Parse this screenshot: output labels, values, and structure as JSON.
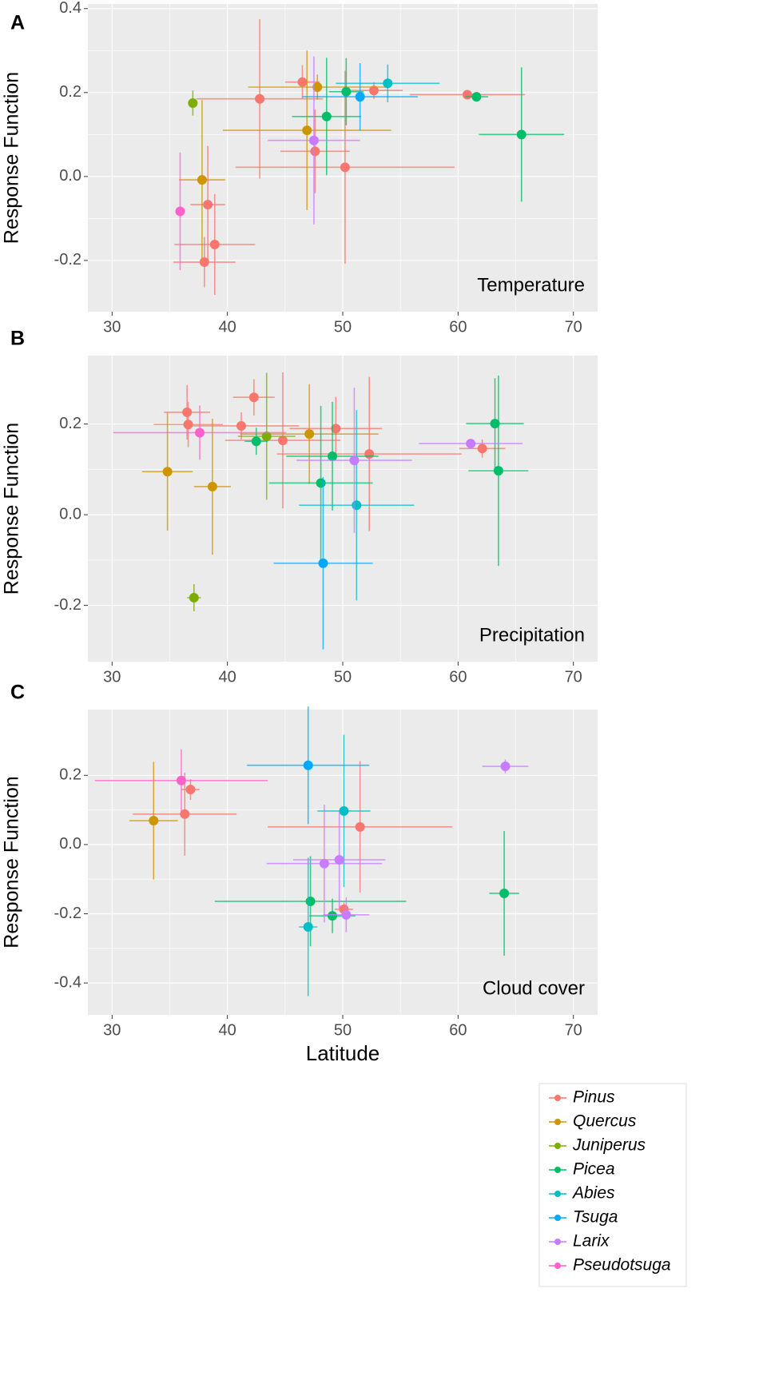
{
  "chart_data": [
    {
      "type": "scatter",
      "panel_label": "A",
      "annotation": "Temperature",
      "ylabel": "Response Function",
      "xlim": [
        27.9,
        72.1
      ],
      "xticks": [
        30,
        40,
        50,
        60,
        70
      ],
      "ylim": [
        -0.322,
        0.411
      ],
      "yticks": [
        {
          "value": 0.4,
          "label": "0.4"
        },
        {
          "value": 0.2,
          "label": "0.2"
        },
        {
          "value": 0,
          "label": "0.0"
        },
        {
          "value": -0.2,
          "label": "-0.2"
        }
      ],
      "grid": true,
      "series": [
        {
          "name": "Pinus",
          "color": "#F8766D",
          "x": [
            46.5,
            42.8,
            52.7,
            60.8,
            47.6,
            50.2,
            38.3,
            38.9,
            38.0
          ],
          "values": [
            0.225,
            0.185,
            0.205,
            0.195,
            0.06,
            0.022,
            -0.067,
            -0.162,
            -0.204
          ],
          "xerr": [
            1.5,
            5.5,
            2.5,
            5,
            3,
            9.5,
            1.5,
            3.5,
            2.7
          ],
          "yerr": [
            0.04,
            0.19,
            0.02,
            0.01,
            0.1,
            0.23,
            0.14,
            0.12,
            0.06
          ]
        },
        {
          "name": "Quercus",
          "color": "#CD9600",
          "x": [
            47.8,
            46.9,
            37.8
          ],
          "values": [
            0.213,
            0.11,
            -0.008
          ],
          "xerr": [
            6,
            7.3,
            2
          ],
          "yerr": [
            0.03,
            0.19,
            0.19
          ]
        },
        {
          "name": "Juniperus",
          "color": "#7CAE00",
          "x": [
            37.0
          ],
          "values": [
            0.175
          ],
          "xerr": [
            0.4
          ],
          "yerr": [
            0.03
          ]
        },
        {
          "name": "Picea",
          "color": "#00BE67",
          "x": [
            50.3,
            48.6,
            61.6,
            65.5
          ],
          "values": [
            0.202,
            0.143,
            0.19,
            0.1
          ],
          "xerr": [
            1.5,
            3,
            1,
            3.7
          ],
          "yerr": [
            0.08,
            0.14,
            0.01,
            0.16
          ]
        },
        {
          "name": "Abies",
          "color": "#00BFC4",
          "x": [
            53.9
          ],
          "values": [
            0.222
          ],
          "xerr": [
            4.5
          ],
          "yerr": [
            0.045
          ]
        },
        {
          "name": "Tsuga",
          "color": "#00A9FF",
          "x": [
            51.5
          ],
          "values": [
            0.19
          ],
          "xerr": [
            5
          ],
          "yerr": [
            0.08
          ]
        },
        {
          "name": "Larix",
          "color": "#C77CFF",
          "x": [
            47.5
          ],
          "values": [
            0.086
          ],
          "xerr": [
            4
          ],
          "yerr": [
            0.2
          ]
        },
        {
          "name": "Pseudotsuga",
          "color": "#FF61CC",
          "x": [
            35.9
          ],
          "values": [
            -0.083
          ],
          "xerr": [
            0.3
          ],
          "yerr": [
            0.14
          ]
        }
      ]
    },
    {
      "type": "scatter",
      "panel_label": "B",
      "annotation": "Precipitation",
      "ylabel": "Response Function",
      "xlim": [
        27.9,
        72.1
      ],
      "xticks": [
        30,
        40,
        50,
        60,
        70
      ],
      "ylim": [
        -0.324,
        0.351
      ],
      "yticks": [
        {
          "value": 0.2,
          "label": "0.2"
        },
        {
          "value": 0,
          "label": "0.0"
        },
        {
          "value": -0.2,
          "label": "-0.2"
        }
      ],
      "grid": true,
      "series": [
        {
          "color": "#F8766D",
          "x": [
            42.3,
            36.5,
            36.6,
            41.2,
            44.8,
            49.4,
            52.3,
            62.1
          ],
          "values": [
            0.259,
            0.226,
            0.199,
            0.196,
            0.164,
            0.19,
            0.134,
            0.146
          ],
          "xerr": [
            1.8,
            2,
            3,
            5,
            5,
            4,
            8,
            2
          ],
          "yerr": [
            0.04,
            0.06,
            0.05,
            0.03,
            0.15,
            0.07,
            0.17,
            0.02
          ]
        },
        {
          "color": "#CD9600",
          "x": [
            34.8,
            38.7,
            47.1
          ],
          "values": [
            0.095,
            0.062,
            0.178
          ],
          "xerr": [
            2.2,
            1.6,
            6
          ],
          "yerr": [
            0.13,
            0.15,
            0.11
          ]
        },
        {
          "color": "#7CAE00",
          "x": [
            43.4,
            37.1
          ],
          "values": [
            0.173,
            -0.183
          ],
          "xerr": [
            2.5,
            0.6
          ],
          "yerr": [
            0.14,
            0.03
          ]
        },
        {
          "color": "#00BE67",
          "x": [
            42.5,
            49.1,
            48.1,
            63.2,
            63.5
          ],
          "values": [
            0.162,
            0.129,
            0.07,
            0.201,
            0.097
          ],
          "xerr": [
            1,
            4,
            4.5,
            2.5,
            2.6
          ],
          "yerr": [
            0.03,
            0.12,
            0.17,
            0.1,
            0.21
          ]
        },
        {
          "color": "#00BFC4",
          "x": [
            51.2
          ],
          "values": [
            0.021
          ],
          "xerr": [
            5
          ],
          "yerr": [
            0.21
          ]
        },
        {
          "color": "#00A9FF",
          "x": [
            48.3
          ],
          "values": [
            -0.107
          ],
          "xerr": [
            4.3
          ],
          "yerr": [
            0.19
          ]
        },
        {
          "color": "#C77CFF",
          "x": [
            51.0,
            61.1
          ],
          "values": [
            0.12,
            0.157
          ],
          "xerr": [
            5,
            4.5
          ],
          "yerr": [
            0.16,
            0.01
          ]
        },
        {
          "color": "#FF61CC",
          "x": [
            37.6
          ],
          "values": [
            0.181
          ],
          "xerr": [
            7.5
          ],
          "yerr": [
            0.06
          ]
        }
      ]
    },
    {
      "type": "scatter",
      "panel_label": "C",
      "annotation": "Cloud cover",
      "ylabel": "Response Function",
      "xlabel": "Latitude",
      "xlim": [
        27.9,
        72.1
      ],
      "xticks": [
        30,
        40,
        50,
        60,
        70
      ],
      "ylim": [
        -0.492,
        0.39
      ],
      "yticks": [
        {
          "value": 0.2,
          "label": "0.2"
        },
        {
          "value": 0,
          "label": "0.0"
        },
        {
          "value": -0.2,
          "label": "-0.2"
        },
        {
          "value": -0.4,
          "label": "-0.4"
        }
      ],
      "grid": true,
      "series": [
        {
          "color": "#F8766D",
          "x": [
            36.8,
            36.3,
            51.5,
            50.1
          ],
          "values": [
            0.159,
            0.088,
            0.051,
            -0.187
          ],
          "xerr": [
            0.8,
            4.5,
            8,
            0.8
          ],
          "yerr": [
            0.03,
            0.12,
            0.19,
            0.02
          ]
        },
        {
          "color": "#CD9600",
          "x": [
            33.6
          ],
          "values": [
            0.069
          ],
          "xerr": [
            2.1
          ],
          "yerr": [
            0.17
          ]
        },
        {
          "color": "#00BE67",
          "x": [
            47.2,
            49.1,
            64.0
          ],
          "values": [
            -0.164,
            -0.206,
            -0.141
          ],
          "xerr": [
            8.3,
            2,
            1.3
          ],
          "yerr": [
            0.13,
            0.05,
            0.18
          ]
        },
        {
          "color": "#00BFC4",
          "x": [
            50.1,
            47.0
          ],
          "values": [
            0.097,
            -0.238
          ],
          "xerr": [
            2.3,
            0.8
          ],
          "yerr": [
            0.22,
            0.2
          ]
        },
        {
          "color": "#00A9FF",
          "x": [
            47.0
          ],
          "values": [
            0.229
          ],
          "xerr": [
            5.3
          ],
          "yerr": [
            0.17
          ]
        },
        {
          "color": "#C77CFF",
          "x": [
            64.1,
            48.4,
            49.7,
            50.3
          ],
          "values": [
            0.226,
            -0.055,
            -0.044,
            -0.203
          ],
          "xerr": [
            2,
            5,
            4,
            2
          ],
          "yerr": [
            0.02,
            0.17,
            0.14,
            0.05
          ]
        },
        {
          "color": "#FF61CC",
          "x": [
            36.0
          ],
          "values": [
            0.185
          ],
          "xerr": [
            7.5
          ],
          "yerr": [
            0.09
          ]
        }
      ]
    }
  ]
}
